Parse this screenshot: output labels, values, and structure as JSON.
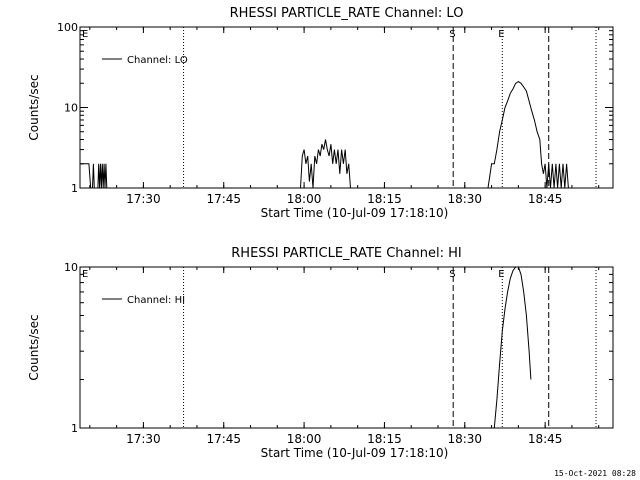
{
  "footer": {
    "date": "15-Oct-2021 08:28"
  },
  "chart_data": [
    {
      "type": "line",
      "title": "RHESSI PARTICLE_RATE Channel: LO",
      "xlabel": "Start Time (10-Jul-09 17:18:10)",
      "ylabel": "Counts/sec",
      "yscale": "log",
      "ylim": [
        1,
        100
      ],
      "xlim": [
        "17:18:10",
        "18:57:40"
      ],
      "x_ticks": [
        "17:30",
        "17:45",
        "18:00",
        "18:15",
        "18:30",
        "18:45"
      ],
      "y_ticks": [
        "1",
        "10",
        "100"
      ],
      "legend": {
        "placement": "top-left",
        "entries": [
          "Channel: LO"
        ]
      },
      "markers": [
        {
          "label": "E",
          "time": "17:18:10",
          "style": "none"
        },
        {
          "label": "",
          "time": "17:37:30",
          "style": "dotted"
        },
        {
          "label": "S",
          "time": "18:27:50",
          "style": "dashed"
        },
        {
          "label": "E",
          "time": "18:37:00",
          "style": "dotted"
        },
        {
          "label": "",
          "time": "18:45:40",
          "style": "dashed"
        },
        {
          "label": "",
          "time": "18:54:30",
          "style": "dotted"
        }
      ],
      "series": [
        {
          "name": "Channel: LO",
          "segments": [
            {
              "x": [
                "17:18:10",
                "17:19:00",
                "17:19:50",
                "17:20:10",
                "17:20:30",
                "17:20:40",
                "17:20:50",
                "17:21:30",
                "17:21:40",
                "17:21:50",
                "17:22:00",
                "17:22:10",
                "17:22:20",
                "17:22:30",
                "17:22:40",
                "17:22:50",
                "17:23:00",
                "17:23:10",
                "17:23:20"
              ],
              "y": [
                2,
                2,
                2,
                1,
                1,
                2,
                1,
                1,
                2,
                1,
                2,
                1,
                2,
                1,
                2,
                1,
                2,
                1,
                1
              ]
            },
            {
              "x": [
                "17:59:20",
                "17:59:40",
                "18:00:00",
                "18:00:20",
                "18:00:40",
                "18:01:00",
                "18:01:20",
                "18:01:40",
                "18:02:00",
                "18:02:20",
                "18:02:40",
                "18:03:00",
                "18:03:20",
                "18:03:40",
                "18:04:00",
                "18:04:20",
                "18:04:40",
                "18:05:00",
                "18:05:20",
                "18:05:40",
                "18:06:00",
                "18:06:20",
                "18:06:40",
                "18:07:00",
                "18:07:20",
                "18:07:40",
                "18:08:00",
                "18:08:20",
                "18:08:40"
              ],
              "y": [
                1,
                2.5,
                3,
                2,
                2.5,
                1.2,
                2,
                1,
                2.5,
                2,
                3,
                2.5,
                3.5,
                3,
                4,
                3,
                2.5,
                3.5,
                2,
                3,
                2,
                3,
                1.5,
                3,
                2,
                3,
                1.5,
                2,
                1
              ]
            },
            {
              "x": [
                "18:34:20",
                "18:35:00",
                "18:35:30",
                "18:36:00",
                "18:36:30",
                "18:37:00",
                "18:37:30",
                "18:38:00",
                "18:38:30",
                "18:39:00",
                "18:39:30",
                "18:40:00",
                "18:40:30",
                "18:41:00",
                "18:41:30",
                "18:42:00",
                "18:42:30",
                "18:43:00",
                "18:43:30",
                "18:44:00",
                "18:44:20",
                "18:44:40",
                "18:45:00",
                "18:45:20",
                "18:45:40",
                "18:46:00",
                "18:46:20",
                "18:46:40",
                "18:47:00",
                "18:47:20",
                "18:47:40",
                "18:48:00",
                "18:48:20",
                "18:48:40",
                "18:49:00",
                "18:49:20",
                "18:49:40"
              ],
              "y": [
                1,
                2,
                2,
                3,
                5,
                7,
                10,
                12,
                15,
                17,
                20,
                21,
                20,
                18,
                16,
                12,
                9,
                7,
                5,
                4,
                2,
                1.5,
                2,
                1,
                2,
                1,
                2,
                1,
                2,
                1,
                2,
                1,
                2,
                1,
                2,
                1,
                1
              ]
            }
          ]
        }
      ]
    },
    {
      "type": "line",
      "title": "RHESSI PARTICLE_RATE Channel: HI",
      "xlabel": "Start Time (10-Jul-09 17:18:10)",
      "ylabel": "Counts/sec",
      "yscale": "log",
      "ylim": [
        1,
        10
      ],
      "xlim": [
        "17:18:10",
        "18:57:40"
      ],
      "x_ticks": [
        "17:30",
        "17:45",
        "18:00",
        "18:15",
        "18:30",
        "18:45"
      ],
      "y_ticks": [
        "1",
        "10"
      ],
      "legend": {
        "placement": "top-left",
        "entries": [
          "Channel: HI"
        ]
      },
      "markers": [
        {
          "label": "E",
          "time": "17:18:10",
          "style": "none"
        },
        {
          "label": "",
          "time": "17:37:30",
          "style": "dotted"
        },
        {
          "label": "S",
          "time": "18:27:50",
          "style": "dashed"
        },
        {
          "label": "E",
          "time": "18:37:00",
          "style": "dotted"
        },
        {
          "label": "",
          "time": "18:45:40",
          "style": "dashed"
        },
        {
          "label": "",
          "time": "18:54:30",
          "style": "dotted"
        }
      ],
      "series": [
        {
          "name": "Channel: HI",
          "segments": [
            {
              "x": [
                "18:35:30",
                "18:36:00",
                "18:36:30",
                "18:37:00",
                "18:37:30",
                "18:38:00",
                "18:38:30",
                "18:39:00",
                "18:39:30",
                "18:40:00",
                "18:40:30",
                "18:41:00",
                "18:41:30",
                "18:42:00",
                "18:42:20"
              ],
              "y": [
                1,
                1.5,
                2.5,
                4,
                5.5,
                7,
                8.5,
                9.5,
                10,
                10,
                9,
                7,
                5,
                3,
                2
              ]
            }
          ]
        }
      ]
    }
  ]
}
